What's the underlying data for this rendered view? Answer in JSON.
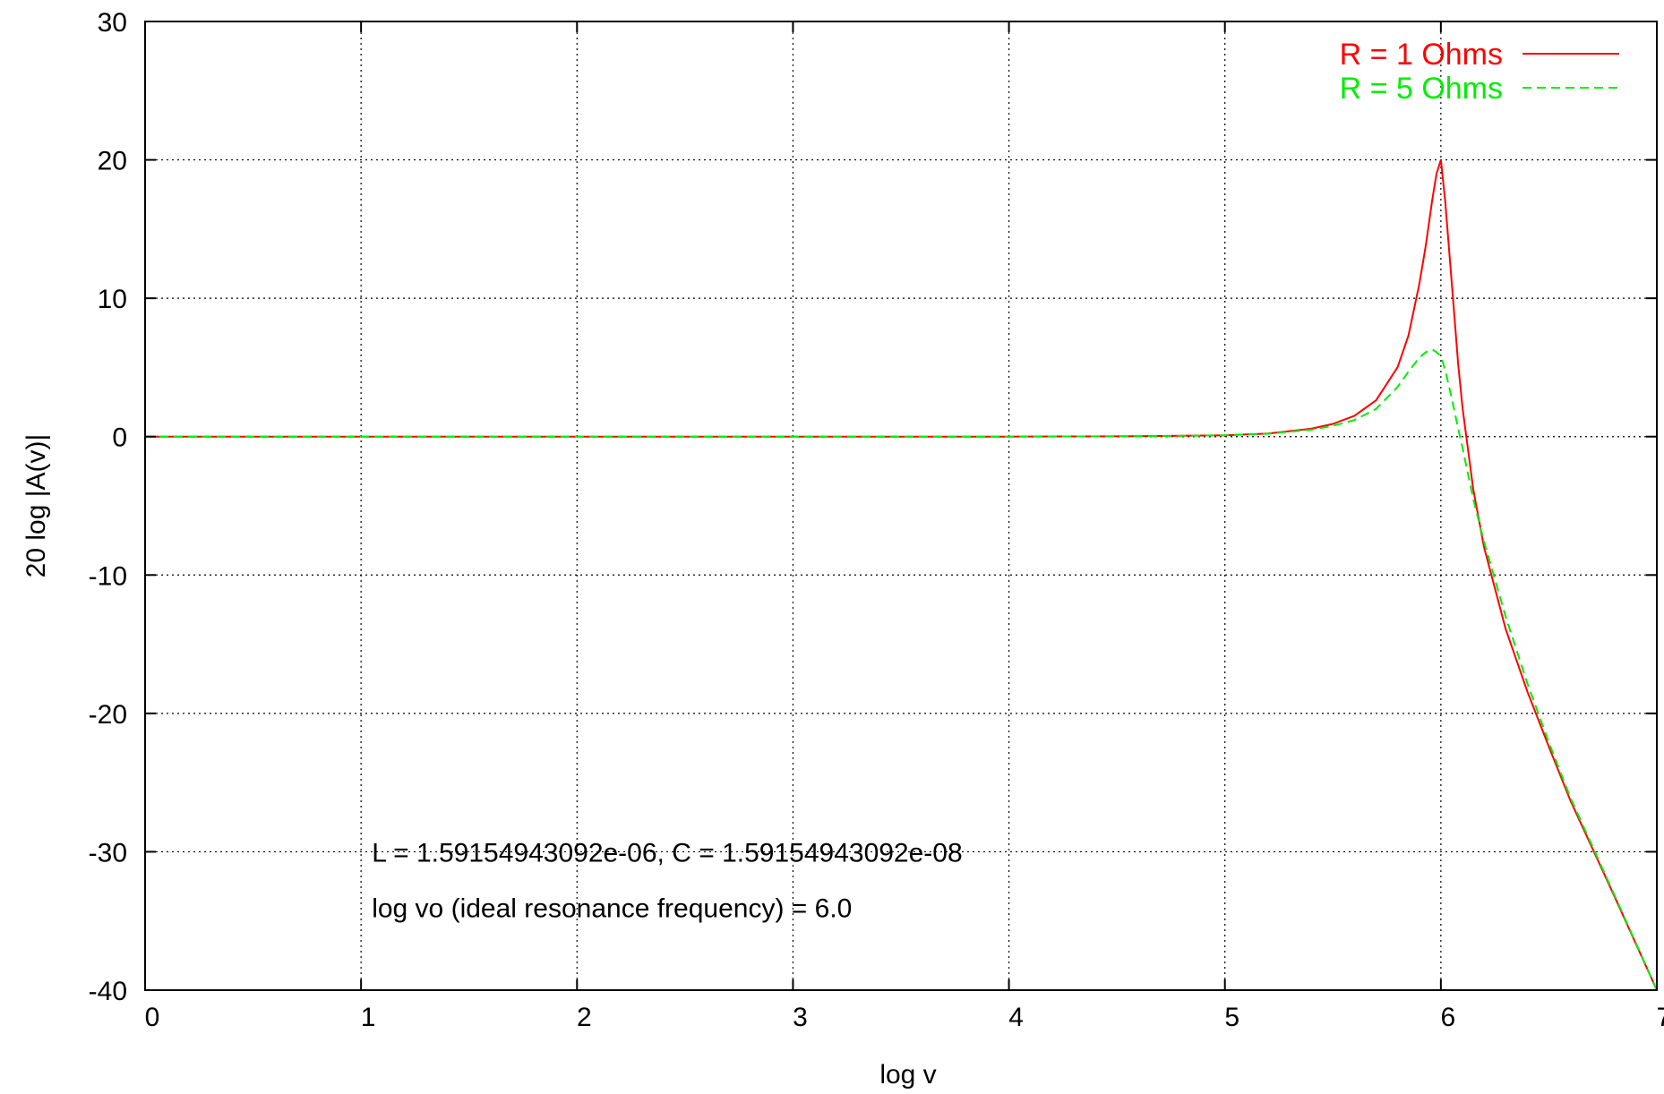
{
  "chart_data": {
    "type": "line",
    "title": "",
    "xlabel": "log v",
    "ylabel": "20 log |A(v)|",
    "xlim": [
      0,
      7
    ],
    "ylim": [
      -40,
      30
    ],
    "x_ticks": [
      0,
      1,
      2,
      3,
      4,
      5,
      6,
      7
    ],
    "y_ticks": [
      -40,
      -30,
      -20,
      -10,
      0,
      10,
      20,
      30
    ],
    "grid": true,
    "legend_position": "top-right",
    "annotations": [
      {
        "text": "L = 1.59154943092e-06, C = 1.59154943092e-08",
        "x": 1.05,
        "y": -30
      },
      {
        "text": "log vo (ideal resonance frequency) = 6.0",
        "x": 1.05,
        "y": -34
      }
    ],
    "series": [
      {
        "name": "R = 1 Ohms",
        "color": "#ff0000",
        "dash": "solid",
        "x": [
          0,
          1,
          2,
          3,
          4,
          4.5,
          4.8,
          5.0,
          5.2,
          5.4,
          5.5,
          5.6,
          5.7,
          5.8,
          5.85,
          5.9,
          5.93,
          5.96,
          5.98,
          6.0,
          6.02,
          6.05,
          6.08,
          6.1,
          6.15,
          6.2,
          6.3,
          6.4,
          6.5,
          6.6,
          6.8,
          7.0
        ],
        "y": [
          0,
          0,
          0,
          0,
          0,
          0.02,
          0.06,
          0.09,
          0.22,
          0.57,
          0.92,
          1.51,
          2.62,
          5.02,
          7.31,
          11.0,
          13.8,
          17.1,
          19.0,
          20.0,
          17.0,
          11.2,
          5.3,
          2.1,
          -3.8,
          -8.0,
          -13.9,
          -18.4,
          -22.4,
          -26.3,
          -33.1,
          -40.0
        ]
      },
      {
        "name": "R = 5 Ohms",
        "color": "#00ee00",
        "dash": "dashed",
        "x": [
          0,
          1,
          2,
          3,
          4,
          4.5,
          4.8,
          5.0,
          5.2,
          5.4,
          5.5,
          5.6,
          5.7,
          5.8,
          5.85,
          5.9,
          5.93,
          5.96,
          5.98,
          6.0,
          6.02,
          6.05,
          6.08,
          6.1,
          6.15,
          6.2,
          6.3,
          6.4,
          6.5,
          6.6,
          6.8,
          7.0
        ],
        "y": [
          0,
          0,
          0,
          0,
          0,
          0.02,
          0.06,
          0.09,
          0.21,
          0.5,
          0.78,
          1.2,
          2.0,
          3.6,
          4.7,
          5.7,
          6.1,
          6.3,
          6.1,
          5.8,
          4.8,
          2.8,
          0.6,
          -0.8,
          -4.5,
          -7.6,
          -13.0,
          -17.8,
          -22.1,
          -26.1,
          -33.0,
          -40.0
        ]
      }
    ]
  }
}
